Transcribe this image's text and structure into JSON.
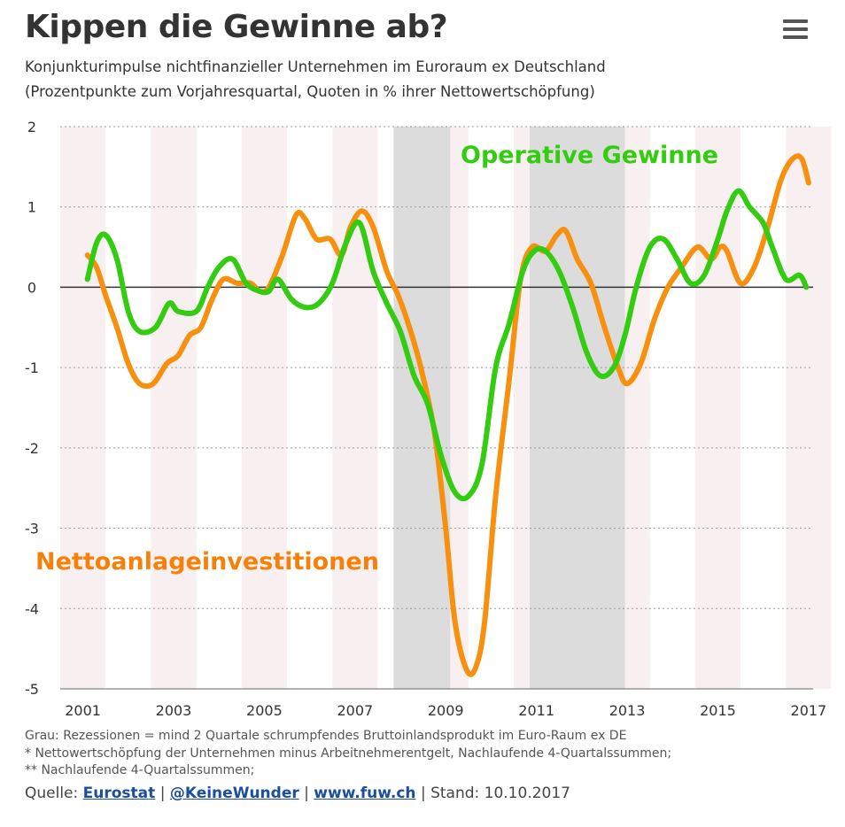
{
  "header": {
    "title": "Kippen die Gewinne ab?",
    "subtitle_line1": "Konjunkturimpulse nichtfinanzieller Unternehmen im Euroraum ex Deutschland",
    "subtitle_line2": "(Prozentpunkte zum Vorjahresquartal, Quoten in % ihrer Nettowertschöpfung)",
    "menu_icon": "hamburger-menu-icon"
  },
  "chart_data": {
    "type": "line",
    "xlim": [
      2000.5,
      2017.1
    ],
    "ylim": [
      -5,
      2
    ],
    "x_ticks": [
      2001,
      2003,
      2005,
      2007,
      2009,
      2011,
      2013,
      2015,
      2017
    ],
    "x_tick_labels": [
      "2001",
      "2003",
      "2005",
      "2007",
      "2009",
      "2011",
      "2013",
      "2015",
      "2017"
    ],
    "y_ticks": [
      2,
      1,
      0,
      -1,
      -2,
      -3,
      -4,
      -5
    ],
    "y_tick_labels": [
      "2",
      "1",
      "0",
      "-1",
      "-2",
      "-3",
      "-4",
      "-5"
    ],
    "recessions": [
      [
        2007.85,
        2009.1
      ],
      [
        2010.85,
        2012.95
      ]
    ],
    "series": [
      {
        "name": "Operative Gewinne",
        "color": "#33cc11",
        "label_color": "#33cc11",
        "points": [
          [
            2001.1,
            0.1
          ],
          [
            2001.3,
            0.55
          ],
          [
            2001.5,
            0.65
          ],
          [
            2001.75,
            0.35
          ],
          [
            2002.0,
            -0.3
          ],
          [
            2002.25,
            -0.55
          ],
          [
            2002.6,
            -0.5
          ],
          [
            2002.9,
            -0.2
          ],
          [
            2003.1,
            -0.3
          ],
          [
            2003.5,
            -0.3
          ],
          [
            2003.75,
            0.0
          ],
          [
            2004.0,
            0.25
          ],
          [
            2004.3,
            0.35
          ],
          [
            2004.6,
            0.05
          ],
          [
            2004.9,
            -0.05
          ],
          [
            2005.1,
            -0.05
          ],
          [
            2005.3,
            0.1
          ],
          [
            2005.6,
            -0.15
          ],
          [
            2005.9,
            -0.25
          ],
          [
            2006.2,
            -0.2
          ],
          [
            2006.5,
            0.05
          ],
          [
            2006.8,
            0.55
          ],
          [
            2007.1,
            0.8
          ],
          [
            2007.4,
            0.2
          ],
          [
            2007.7,
            -0.2
          ],
          [
            2008.0,
            -0.55
          ],
          [
            2008.3,
            -1.1
          ],
          [
            2008.6,
            -1.45
          ],
          [
            2008.9,
            -2.1
          ],
          [
            2009.2,
            -2.55
          ],
          [
            2009.5,
            -2.6
          ],
          [
            2009.8,
            -2.2
          ],
          [
            2010.1,
            -1.0
          ],
          [
            2010.4,
            -0.45
          ],
          [
            2010.7,
            0.2
          ],
          [
            2010.95,
            0.45
          ],
          [
            2011.2,
            0.45
          ],
          [
            2011.5,
            0.2
          ],
          [
            2011.8,
            -0.25
          ],
          [
            2012.1,
            -0.8
          ],
          [
            2012.4,
            -1.1
          ],
          [
            2012.7,
            -1.0
          ],
          [
            2012.95,
            -0.6
          ],
          [
            2013.2,
            0.0
          ],
          [
            2013.5,
            0.5
          ],
          [
            2013.8,
            0.6
          ],
          [
            2014.1,
            0.35
          ],
          [
            2014.4,
            0.05
          ],
          [
            2014.7,
            0.15
          ],
          [
            2015.0,
            0.6
          ],
          [
            2015.2,
            0.95
          ],
          [
            2015.45,
            1.2
          ],
          [
            2015.7,
            1.0
          ],
          [
            2016.0,
            0.8
          ],
          [
            2016.2,
            0.5
          ],
          [
            2016.5,
            0.1
          ],
          [
            2016.8,
            0.15
          ],
          [
            2016.95,
            0.0
          ]
        ]
      },
      {
        "name": "Nettoanlageinvestitionen",
        "color": "#f7900f",
        "label_color": "#f7800a",
        "points": [
          [
            2001.1,
            0.4
          ],
          [
            2001.3,
            0.25
          ],
          [
            2001.5,
            -0.1
          ],
          [
            2001.75,
            -0.5
          ],
          [
            2002.0,
            -0.95
          ],
          [
            2002.25,
            -1.2
          ],
          [
            2002.55,
            -1.2
          ],
          [
            2002.85,
            -0.95
          ],
          [
            2003.1,
            -0.85
          ],
          [
            2003.35,
            -0.6
          ],
          [
            2003.6,
            -0.5
          ],
          [
            2003.85,
            -0.15
          ],
          [
            2004.1,
            0.1
          ],
          [
            2004.4,
            0.05
          ],
          [
            2004.7,
            0.05
          ],
          [
            2004.9,
            -0.05
          ],
          [
            2005.1,
            0.0
          ],
          [
            2005.4,
            0.4
          ],
          [
            2005.7,
            0.9
          ],
          [
            2005.9,
            0.85
          ],
          [
            2006.15,
            0.6
          ],
          [
            2006.45,
            0.6
          ],
          [
            2006.7,
            0.4
          ],
          [
            2006.9,
            0.75
          ],
          [
            2007.15,
            0.95
          ],
          [
            2007.4,
            0.75
          ],
          [
            2007.7,
            0.2
          ],
          [
            2007.95,
            -0.1
          ],
          [
            2008.2,
            -0.5
          ],
          [
            2008.45,
            -1.0
          ],
          [
            2008.75,
            -1.8
          ],
          [
            2009.0,
            -3.0
          ],
          [
            2009.2,
            -4.15
          ],
          [
            2009.45,
            -4.75
          ],
          [
            2009.65,
            -4.75
          ],
          [
            2009.85,
            -4.2
          ],
          [
            2010.1,
            -2.6
          ],
          [
            2010.4,
            -1.15
          ],
          [
            2010.65,
            0.1
          ],
          [
            2010.9,
            0.5
          ],
          [
            2011.2,
            0.45
          ],
          [
            2011.45,
            0.65
          ],
          [
            2011.65,
            0.7
          ],
          [
            2011.9,
            0.35
          ],
          [
            2012.2,
            0.05
          ],
          [
            2012.5,
            -0.5
          ],
          [
            2012.8,
            -1.0
          ],
          [
            2013.0,
            -1.2
          ],
          [
            2013.3,
            -0.95
          ],
          [
            2013.6,
            -0.4
          ],
          [
            2013.9,
            0.0
          ],
          [
            2014.2,
            0.25
          ],
          [
            2014.55,
            0.5
          ],
          [
            2014.85,
            0.35
          ],
          [
            2015.05,
            0.5
          ],
          [
            2015.2,
            0.45
          ],
          [
            2015.5,
            0.05
          ],
          [
            2015.8,
            0.25
          ],
          [
            2016.1,
            0.75
          ],
          [
            2016.4,
            1.35
          ],
          [
            2016.65,
            1.6
          ],
          [
            2016.85,
            1.6
          ],
          [
            2017.0,
            1.3
          ]
        ]
      }
    ],
    "series_labels": [
      {
        "text": "Operative Gewinne",
        "series": 0
      },
      {
        "text": "Nettoanlageinvestitionen",
        "series": 1
      }
    ]
  },
  "footnotes": {
    "line1": "Grau: Rezessionen = mind 2 Quartale schrumpfendes Bruttoinlandsprodukt im Euro-Raum ex DE",
    "line2": "* Nettowertschöpfung der Unternehmen minus Arbeitnehmerentgelt, Nachlaufende 4-Quartalssummen;",
    "line3": "** Nachlaufende 4-Quartalssummen;"
  },
  "source": {
    "prefix": "Quelle:",
    "link1": "Eurostat",
    "link2": "@KeineWunder",
    "link3": "www.fuw.ch",
    "separator": "|",
    "stand": "Stand: 10.10.2017"
  }
}
